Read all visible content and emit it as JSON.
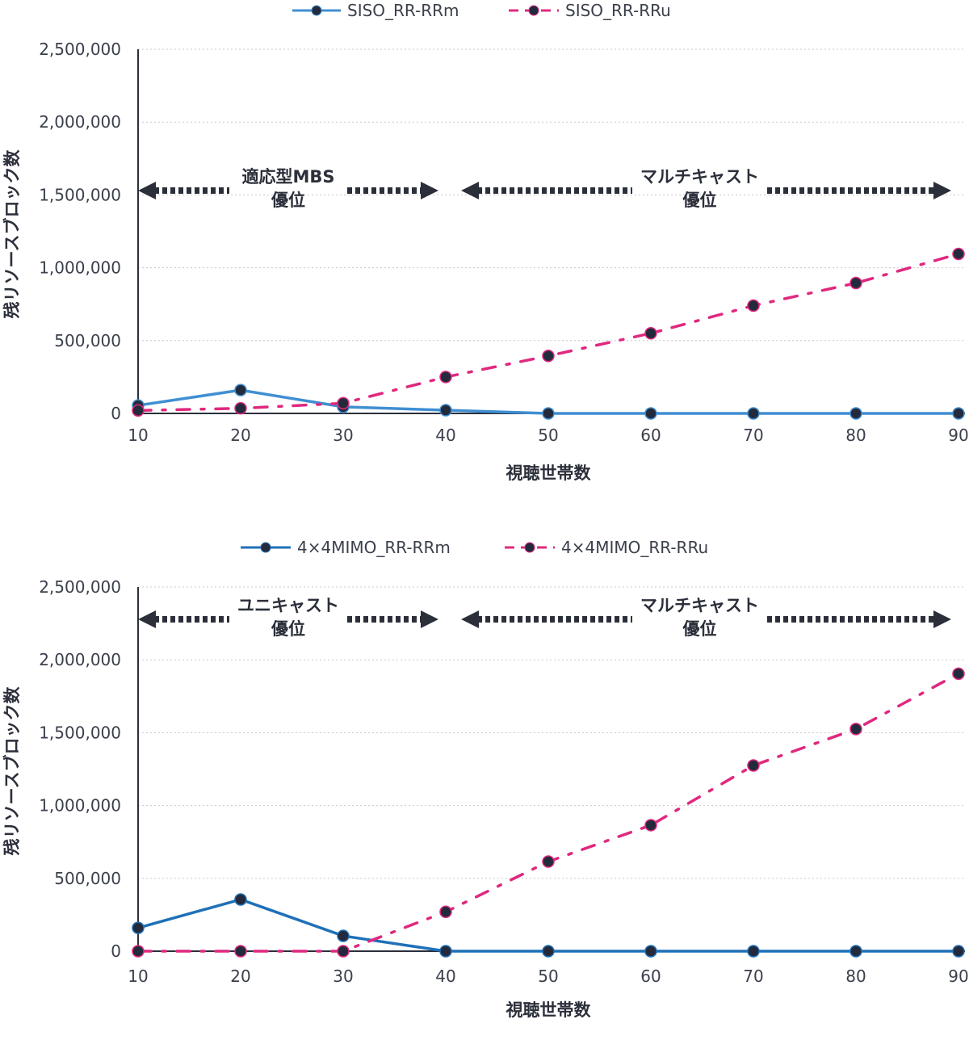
{
  "chart_data": [
    {
      "type": "line",
      "title": "",
      "xlabel": "視聴世帯数",
      "ylabel": "残リソースブロック数",
      "x": [
        10,
        20,
        30,
        40,
        50,
        60,
        70,
        80,
        90
      ],
      "xticks": [
        "10",
        "20",
        "30",
        "40",
        "50",
        "60",
        "70",
        "80",
        "90"
      ],
      "ylim": [
        0,
        2500000
      ],
      "yticks": [
        "0",
        "500,000",
        "1,000,000",
        "1,500,000",
        "2,000,000",
        "2,500,000"
      ],
      "grid": true,
      "legend_position": "top-center",
      "series": [
        {
          "name": "SISO_RR-RRm",
          "color": "#3f8fd2",
          "style": "solid",
          "values": [
            55000,
            160000,
            45000,
            22000,
            0,
            0,
            0,
            0,
            0
          ]
        },
        {
          "name": "SISO_RR-RRu",
          "color": "#e0287f",
          "style": "dashdot",
          "values": [
            20000,
            35000,
            70000,
            250000,
            395000,
            550000,
            740000,
            895000,
            1095000
          ]
        }
      ],
      "annotations": [
        {
          "lines": [
            "適応型MBS",
            "優位"
          ],
          "x_range": [
            10,
            40
          ],
          "y": 1550000
        },
        {
          "lines": [
            "マルチキャスト",
            "優位"
          ],
          "x_range": [
            41.5,
            90
          ],
          "y": 1550000
        }
      ]
    },
    {
      "type": "line",
      "title": "",
      "xlabel": "視聴世帯数",
      "ylabel": "残リソースブロック数",
      "x": [
        10,
        20,
        30,
        40,
        50,
        60,
        70,
        80,
        90
      ],
      "xticks": [
        "10",
        "20",
        "30",
        "40",
        "50",
        "60",
        "70",
        "80",
        "90"
      ],
      "ylim": [
        0,
        2500000
      ],
      "yticks": [
        "0",
        "500,000",
        "1,000,000",
        "1,500,000",
        "2,000,000",
        "2,500,000"
      ],
      "grid": true,
      "legend_position": "top-center",
      "series": [
        {
          "name": "4×4MIMO_RR-RRm",
          "color": "#1f70b8",
          "style": "solid",
          "values": [
            160000,
            355000,
            105000,
            0,
            0,
            0,
            0,
            0,
            0
          ]
        },
        {
          "name": "4×4MIMO_RR-RRu",
          "color": "#e0287f",
          "style": "dashdot",
          "values": [
            0,
            0,
            0,
            270000,
            615000,
            865000,
            1275000,
            1525000,
            1905000
          ]
        }
      ],
      "annotations": [
        {
          "lines": [
            "ユニキャスト",
            "優位"
          ],
          "x_range": [
            10,
            40
          ],
          "y": 2300000
        },
        {
          "lines": [
            "マルチキャスト",
            "優位"
          ],
          "x_range": [
            41.5,
            90
          ],
          "y": 2300000
        }
      ]
    }
  ],
  "colors": {
    "marker": "#232a3b",
    "axis": "#2b2f3a",
    "grid": "#c8c8c8",
    "arrow": "#2b2f3a"
  }
}
